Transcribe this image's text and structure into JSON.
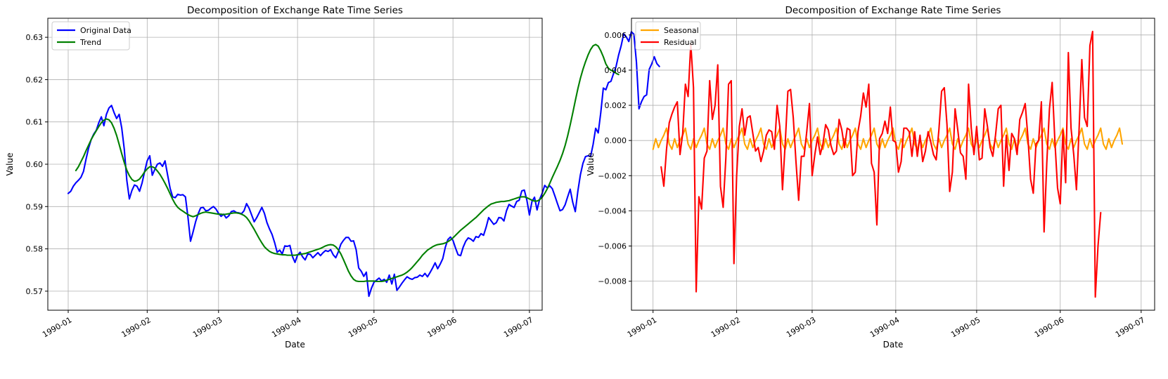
{
  "chart_data": [
    {
      "type": "line",
      "title": "Decomposition of Exchange Rate Time Series",
      "xlabel": "Date",
      "ylabel": "Value",
      "xlim": [
        "1989-12-24",
        "1990-07-06"
      ],
      "ylim": [
        0.5655,
        0.6345
      ],
      "x_ticks": [
        "1990-01-01",
        "1990-02-01",
        "1990-03-01",
        "1990-04-01",
        "1990-05-01",
        "1990-06-01",
        "1990-07-01"
      ],
      "x_tick_labels": [
        "1990-01",
        "1990-02",
        "1990-03",
        "1990-04",
        "1990-05",
        "1990-06",
        "1990-07"
      ],
      "y_ticks": [
        0.57,
        0.58,
        0.59,
        0.6,
        0.61,
        0.62,
        0.63
      ],
      "y_tick_labels": [
        "0.57",
        "0.58",
        "0.59",
        "0.60",
        "0.61",
        "0.62",
        "0.63"
      ],
      "grid": true,
      "legend": "upper left",
      "series": [
        {
          "name": "Original Data",
          "color": "#0000ff",
          "x_start": "1990-01-01",
          "step_days": 1,
          "values": [
            0.5931,
            0.5936,
            0.5948,
            0.5956,
            0.5962,
            0.5969,
            0.5983,
            0.6012,
            0.6038,
            0.6058,
            0.6071,
            0.608,
            0.6098,
            0.6112,
            0.6091,
            0.6118,
            0.6133,
            0.6139,
            0.6122,
            0.6108,
            0.6118,
            0.6086,
            0.6036,
            0.5962,
            0.5918,
            0.5938,
            0.5951,
            0.5948,
            0.5936,
            0.5956,
            0.5983,
            0.6008,
            0.602,
            0.5974,
            0.5988,
            0.6,
            0.6003,
            0.5995,
            0.6008,
            0.5975,
            0.5943,
            0.5923,
            0.5921,
            0.5929,
            0.5927,
            0.5928,
            0.5923,
            0.5875,
            0.5818,
            0.584,
            0.5864,
            0.5883,
            0.5897,
            0.5898,
            0.589,
            0.5891,
            0.5896,
            0.59,
            0.5894,
            0.5884,
            0.5877,
            0.5882,
            0.5873,
            0.5878,
            0.5888,
            0.589,
            0.5886,
            0.5885,
            0.5883,
            0.589,
            0.5907,
            0.5896,
            0.588,
            0.5864,
            0.5874,
            0.5886,
            0.5898,
            0.5884,
            0.5862,
            0.5847,
            0.5834,
            0.5815,
            0.5792,
            0.5797,
            0.5788,
            0.5807,
            0.5806,
            0.5808,
            0.5782,
            0.5768,
            0.5785,
            0.5792,
            0.5781,
            0.5774,
            0.5788,
            0.5787,
            0.5779,
            0.5785,
            0.5791,
            0.5784,
            0.5791,
            0.5796,
            0.5794,
            0.5798,
            0.5786,
            0.5779,
            0.5793,
            0.5811,
            0.582,
            0.5827,
            0.5827,
            0.5818,
            0.5819,
            0.5798,
            0.5755,
            0.5747,
            0.5735,
            0.5745,
            0.5688,
            0.5707,
            0.5721,
            0.5726,
            0.5731,
            0.5724,
            0.5728,
            0.5721,
            0.5738,
            0.5717,
            0.574,
            0.5702,
            0.571,
            0.5719,
            0.5727,
            0.5734,
            0.573,
            0.5728,
            0.5732,
            0.5733,
            0.5738,
            0.5735,
            0.5742,
            0.5734,
            0.5744,
            0.5755,
            0.5767,
            0.5753,
            0.5764,
            0.5777,
            0.5804,
            0.5822,
            0.5828,
            0.582,
            0.5802,
            0.5786,
            0.5784,
            0.5804,
            0.5818,
            0.5826,
            0.5823,
            0.5818,
            0.5829,
            0.5827,
            0.5836,
            0.5832,
            0.5851,
            0.5874,
            0.5866,
            0.5858,
            0.5862,
            0.5874,
            0.5873,
            0.5866,
            0.589,
            0.5905,
            0.5901,
            0.5898,
            0.5912,
            0.5915,
            0.5937,
            0.5939,
            0.5915,
            0.588,
            0.5912,
            0.5922,
            0.5892,
            0.5917,
            0.5931,
            0.595,
            0.5944,
            0.5949,
            0.5942,
            0.5925,
            0.5907,
            0.589,
            0.5893,
            0.5904,
            0.5923,
            0.5941,
            0.591,
            0.5888,
            0.5936,
            0.5975,
            0.6002,
            0.6018,
            0.602,
            0.6018,
            0.6047,
            0.6085,
            0.6074,
            0.6122,
            0.618,
            0.6176,
            0.6193,
            0.6196,
            0.6214,
            0.6231,
            0.6258,
            0.628,
            0.6308,
            0.6301,
            0.629,
            0.6313,
            0.6307,
            0.6241,
            0.6131,
            0.6148,
            0.616,
            0.6164,
            0.6224,
            0.6237,
            0.6254,
            0.6238,
            0.6231
          ]
        },
        {
          "name": "Trend",
          "color": "#008000",
          "x_start": "1990-01-04",
          "step_days": 1,
          "values": [
            0.5985,
            0.5994,
            0.6006,
            0.6018,
            0.6032,
            0.6045,
            0.6058,
            0.6069,
            0.6079,
            0.6089,
            0.6098,
            0.6104,
            0.6107,
            0.6105,
            0.6098,
            0.6085,
            0.6068,
            0.6047,
            0.6025,
            0.6004,
            0.5986,
            0.5973,
            0.5964,
            0.596,
            0.5961,
            0.5965,
            0.5973,
            0.5982,
            0.5989,
            0.5994,
            0.5994,
            0.5991,
            0.5984,
            0.5976,
            0.5966,
            0.5955,
            0.5943,
            0.593,
            0.5917,
            0.5906,
            0.5898,
            0.5893,
            0.5889,
            0.5885,
            0.5881,
            0.5878,
            0.5876,
            0.5878,
            0.5881,
            0.5884,
            0.5886,
            0.5887,
            0.5886,
            0.5885,
            0.5884,
            0.5883,
            0.5882,
            0.5882,
            0.5881,
            0.5882,
            0.5883,
            0.5884,
            0.5885,
            0.5885,
            0.5884,
            0.5882,
            0.5879,
            0.5874,
            0.5866,
            0.5856,
            0.5846,
            0.5835,
            0.5824,
            0.5814,
            0.5805,
            0.5799,
            0.5794,
            0.5791,
            0.5789,
            0.5788,
            0.5787,
            0.5786,
            0.5786,
            0.5785,
            0.5785,
            0.5785,
            0.5785,
            0.5786,
            0.5787,
            0.5788,
            0.5789,
            0.5791,
            0.5793,
            0.5795,
            0.5797,
            0.5799,
            0.5801,
            0.5804,
            0.5807,
            0.5809,
            0.581,
            0.5809,
            0.5805,
            0.5798,
            0.5788,
            0.5775,
            0.5761,
            0.5747,
            0.5736,
            0.5728,
            0.5724,
            0.5723,
            0.5723,
            0.5723,
            0.5724,
            0.5724,
            0.5724,
            0.5724,
            0.5723,
            0.5723,
            0.5723,
            0.5724,
            0.5726,
            0.5728,
            0.573,
            0.5732,
            0.5734,
            0.5736,
            0.5738,
            0.5741,
            0.5745,
            0.575,
            0.5756,
            0.5763,
            0.577,
            0.5777,
            0.5785,
            0.5791,
            0.5797,
            0.5801,
            0.5805,
            0.5808,
            0.581,
            0.5811,
            0.5812,
            0.5814,
            0.5817,
            0.5821,
            0.5826,
            0.5832,
            0.5838,
            0.5844,
            0.5849,
            0.5854,
            0.5859,
            0.5864,
            0.5869,
            0.5874,
            0.588,
            0.5886,
            0.5892,
            0.5897,
            0.5902,
            0.5906,
            0.5908,
            0.591,
            0.5911,
            0.5912,
            0.5912,
            0.5913,
            0.5914,
            0.5916,
            0.5918,
            0.592,
            0.5922,
            0.5923,
            0.5923,
            0.5921,
            0.5918,
            0.5915,
            0.5913,
            0.5913,
            0.5916,
            0.5922,
            0.5931,
            0.5942,
            0.5955,
            0.5969,
            0.5982,
            0.5995,
            0.6009,
            0.6025,
            0.6044,
            0.6067,
            0.6093,
            0.6121,
            0.615,
            0.6178,
            0.6203,
            0.6224,
            0.6242,
            0.6258,
            0.6271,
            0.628,
            0.6283,
            0.6279,
            0.6268,
            0.6254,
            0.6237,
            0.6227,
            0.6222,
            0.622,
            0.6215,
            0.6212
          ]
        }
      ]
    },
    {
      "type": "line",
      "title": "Decomposition of Exchange Rate Time Series",
      "xlabel": "Date",
      "ylabel": "Value",
      "xlim": [
        "1989-12-24",
        "1990-07-06"
      ],
      "ylim": [
        -0.00965,
        0.00695
      ],
      "x_ticks": [
        "1990-01-01",
        "1990-02-01",
        "1990-03-01",
        "1990-04-01",
        "1990-05-01",
        "1990-06-01",
        "1990-07-01"
      ],
      "x_tick_labels": [
        "1990-01",
        "1990-02",
        "1990-03",
        "1990-04",
        "1990-05",
        "1990-06",
        "1990-07"
      ],
      "y_ticks": [
        -0.008,
        -0.006,
        -0.004,
        -0.002,
        0.0,
        0.002,
        0.004,
        0.006
      ],
      "y_tick_labels": [
        "−0.008",
        "−0.006",
        "−0.004",
        "−0.002",
        "0.000",
        "0.002",
        "0.004",
        "0.006"
      ],
      "grid": true,
      "legend": "upper left",
      "series": [
        {
          "name": "Seasonal",
          "color": "#ffa500",
          "x_start": "1990-01-01",
          "step_days": 1,
          "pattern_period": 7,
          "pattern": [
            -0.0005,
            0.0001,
            -0.0004,
            0.0,
            0.0003,
            0.0007,
            -0.0002
          ]
        },
        {
          "name": "Residual",
          "color": "#ff0000",
          "x_start": "1990-01-04",
          "step_days": 1,
          "values": [
            -0.0015,
            -0.0026,
            -0.0005,
            0.001,
            0.0015,
            0.0019,
            0.0022,
            -0.0008,
            0.0004,
            0.0032,
            0.0025,
            0.0055,
            0.003,
            -0.0086,
            -0.0032,
            -0.0039,
            -0.001,
            -0.0006,
            0.0034,
            0.0012,
            0.002,
            0.0043,
            -0.0026,
            -0.0038,
            -0.001,
            0.0032,
            0.0034,
            -0.007,
            -0.002,
            0.0008,
            0.0018,
            0.0003,
            0.0013,
            0.0014,
            0.0004,
            -0.0006,
            -0.0004,
            -0.0012,
            -0.0006,
            0.0003,
            0.0006,
            0.0005,
            -0.0005,
            0.002,
            0.0008,
            -0.0028,
            -0.0002,
            0.0028,
            0.0029,
            0.0013,
            -0.0012,
            -0.0034,
            -0.0009,
            -0.0009,
            0.0005,
            0.0021,
            -0.002,
            -0.0008,
            0.0002,
            -0.0008,
            -0.0002,
            0.0009,
            0.0006,
            -0.0003,
            -0.0008,
            -0.0006,
            0.0012,
            0.0006,
            -0.0004,
            0.0007,
            0.0006,
            -0.002,
            -0.0018,
            0.0005,
            0.0014,
            0.0027,
            0.0019,
            0.0032,
            -0.0013,
            -0.0018,
            -0.0048,
            0.0001,
            0.0004,
            0.0011,
            0.0004,
            0.0019,
            0.0,
            -0.0001,
            -0.0018,
            -0.0012,
            0.0007,
            0.0007,
            0.0005,
            -0.0009,
            0.0005,
            -0.0009,
            0.0003,
            -0.0012,
            -0.0006,
            0.0005,
            -0.0001,
            -0.0008,
            -0.0011,
            0.0006,
            0.0028,
            0.003,
            0.0009,
            -0.0029,
            -0.0018,
            0.0018,
            0.0006,
            -0.0007,
            -0.0009,
            -0.0022,
            0.0032,
            0.0007,
            -0.0008,
            0.0008,
            -0.0011,
            -0.001,
            0.0018,
            0.0008,
            -0.0004,
            -0.0009,
            0.0003,
            0.0018,
            0.002,
            -0.0026,
            0.0003,
            -0.0017,
            0.0004,
            0.0001,
            -0.0008,
            0.0012,
            0.0016,
            0.0021,
            0.0002,
            -0.0022,
            -0.003,
            -0.0002,
            0.0,
            0.0022,
            -0.0052,
            -0.0013,
            0.0018,
            0.0033,
            0.0,
            -0.0027,
            -0.0036,
            0.0006,
            -0.0024,
            0.005,
            0.0007,
            -0.0008,
            -0.0028,
            0.0007,
            0.0046,
            0.0013,
            0.0008,
            0.0054,
            0.0062,
            -0.0089,
            -0.006,
            -0.0041
          ]
        }
      ]
    }
  ]
}
